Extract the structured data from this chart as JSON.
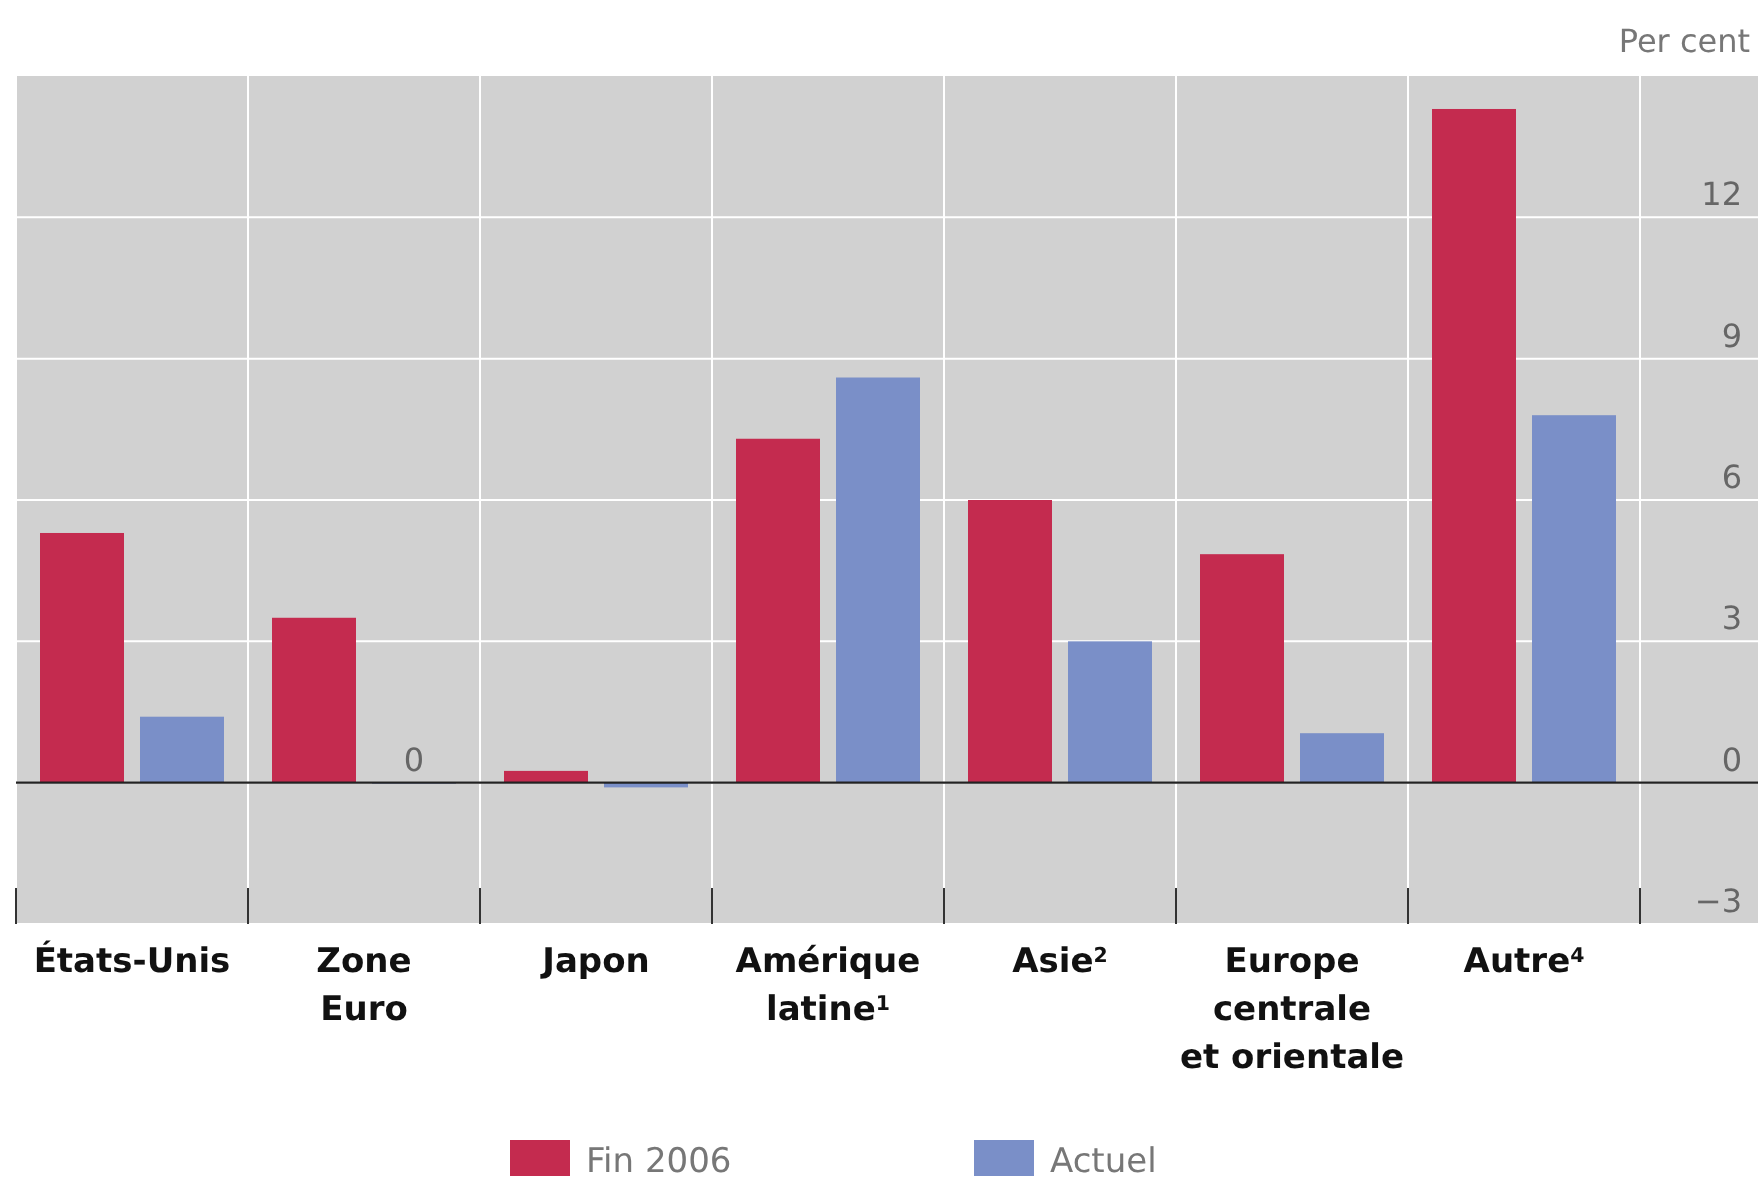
{
  "chart_data": {
    "type": "bar",
    "ylabel": "Per cent",
    "categories": [
      "États-Unis",
      "Zone\nEuro",
      "Japon",
      "Amérique\nlatine$^{1}$",
      "Asie$^{2}$",
      "Europe\ncentrale\net orientale",
      "Autre$^{4}$"
    ],
    "series": [
      {
        "name": "Fin 2006",
        "color": "#c42b4f",
        "values": [
          5.3,
          3.5,
          0.25,
          7.3,
          6.0,
          4.85,
          14.3
        ]
      },
      {
        "name": "Actuel",
        "color": "#7a8fc8",
        "values": [
          1.4,
          0,
          -0.1,
          8.6,
          3.0,
          1.05,
          7.8
        ]
      }
    ],
    "annotations": [
      {
        "text": "0",
        "x": "Zone\nEuro",
        "y": 0
      }
    ],
    "ylim": [
      -3,
      15
    ],
    "yticks": [
      -3,
      0,
      3,
      6,
      9,
      12
    ],
    "grid": true,
    "legend": "bottom"
  }
}
